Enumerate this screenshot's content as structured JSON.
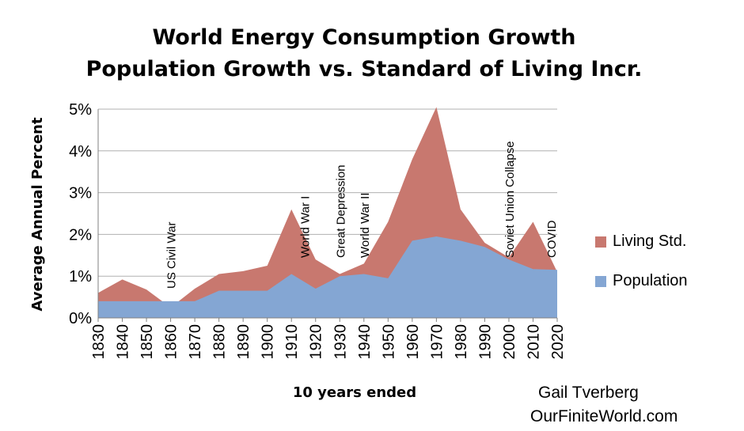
{
  "title": "World Energy Consumption Growth",
  "subtitle": "Population Growth vs. Standard of Living Incr.",
  "credit": {
    "author": "Gail Tverberg",
    "site": "OurFiniteWorld.com"
  },
  "colors": {
    "living": "#c8786f",
    "population": "#84a6d3",
    "grid": "#b0b0b0"
  },
  "chart_data": {
    "type": "area",
    "stacked": true,
    "xlabel": "10 years ended",
    "ylabel": "Average Annual Percent",
    "x": [
      "1830",
      "1840",
      "1850",
      "1860",
      "1870",
      "1880",
      "1890",
      "1900",
      "1910",
      "1920",
      "1930",
      "1940",
      "1950",
      "1960",
      "1970",
      "1980",
      "1990",
      "2000",
      "2010",
      "2020"
    ],
    "ylim": [
      0,
      5
    ],
    "yticks": [
      "0%",
      "1%",
      "2%",
      "3%",
      "4%",
      "5%"
    ],
    "grid": true,
    "legend_position": "right",
    "series": [
      {
        "name": "Population",
        "color": "#84a6d3",
        "values": [
          0.4,
          0.4,
          0.4,
          0.4,
          0.4,
          0.65,
          0.65,
          0.65,
          1.05,
          0.7,
          1.0,
          1.05,
          0.95,
          1.85,
          1.95,
          1.85,
          1.7,
          1.4,
          1.17,
          1.15
        ]
      },
      {
        "name": "Living Std.",
        "color": "#c8786f",
        "values": [
          0.2,
          0.52,
          0.28,
          -0.15,
          0.3,
          0.4,
          0.47,
          0.6,
          1.55,
          0.7,
          0.05,
          0.25,
          1.35,
          1.95,
          3.1,
          0.75,
          0.1,
          0.05,
          1.13,
          -0.05
        ]
      }
    ],
    "annotations": [
      {
        "x": "1860",
        "text": "US Civil War"
      },
      {
        "x": "1920",
        "text": "World War I"
      },
      {
        "x": "1930",
        "text": "Great Depression"
      },
      {
        "x": "1940",
        "text": "World War II"
      },
      {
        "x": "2000",
        "text": "Soviet Union Collapse"
      },
      {
        "x": "2020",
        "text": "COVID"
      }
    ]
  }
}
